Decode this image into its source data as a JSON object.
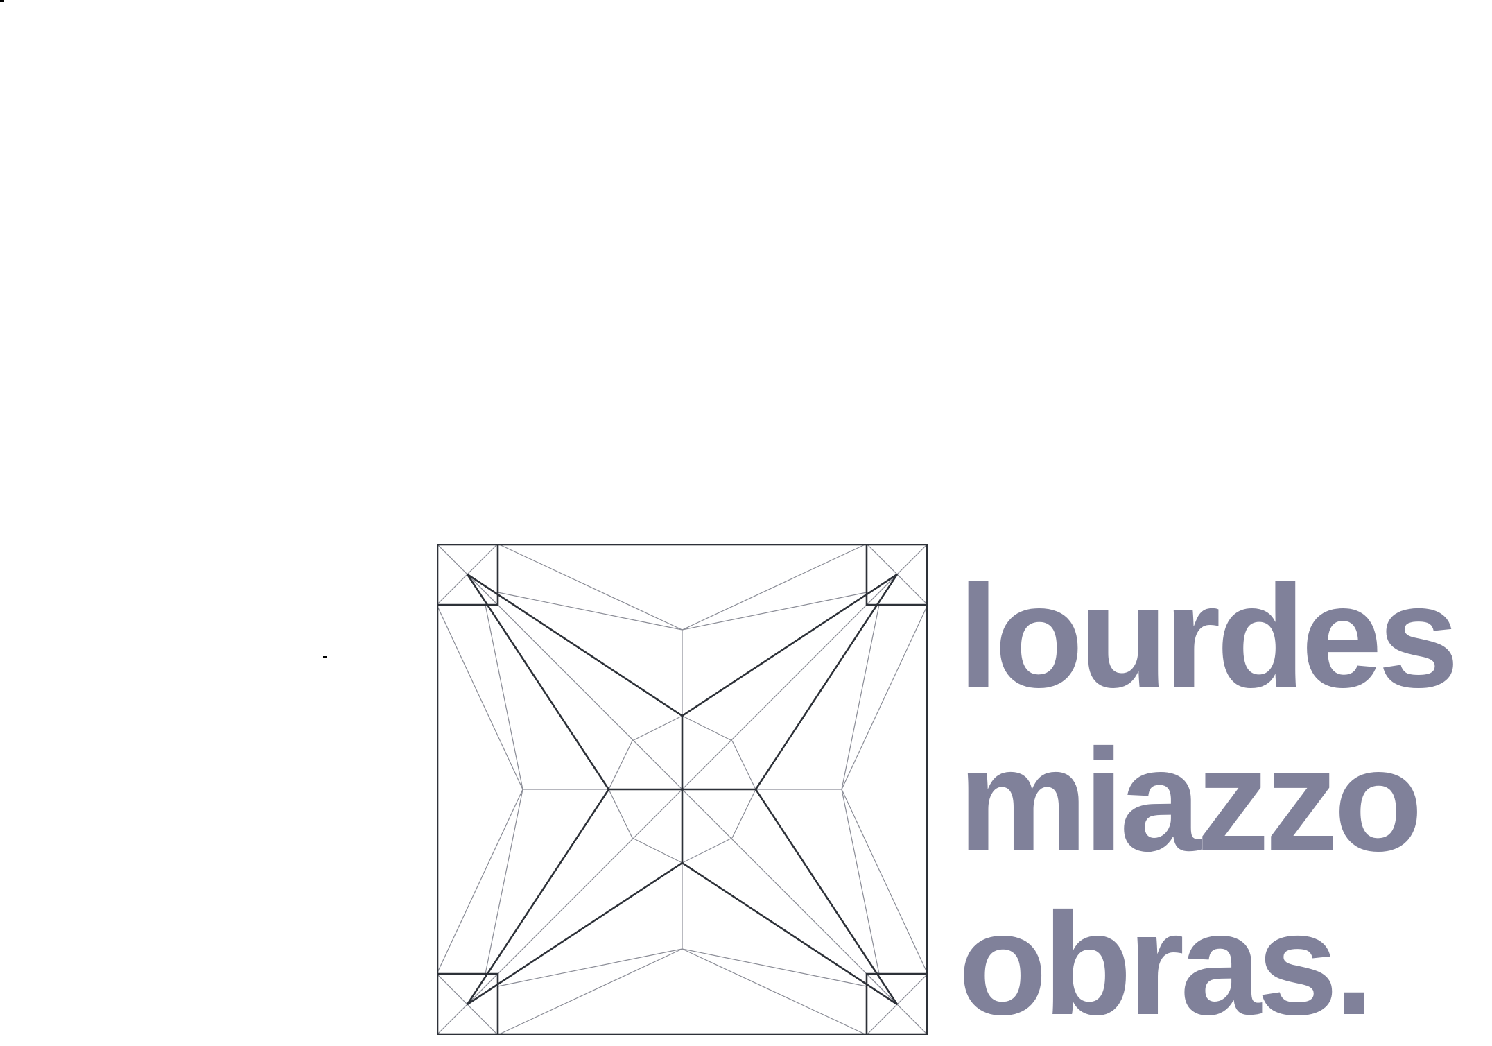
{
  "brand": {
    "wordmark": [
      "lourdes",
      "miazzo",
      "obras."
    ],
    "wordmark_color": "#80819a",
    "logo_icon": "geometric-star-square-icon",
    "logo_stroke_dark": "#2d3138",
    "logo_stroke_light": "#8a8c96"
  }
}
